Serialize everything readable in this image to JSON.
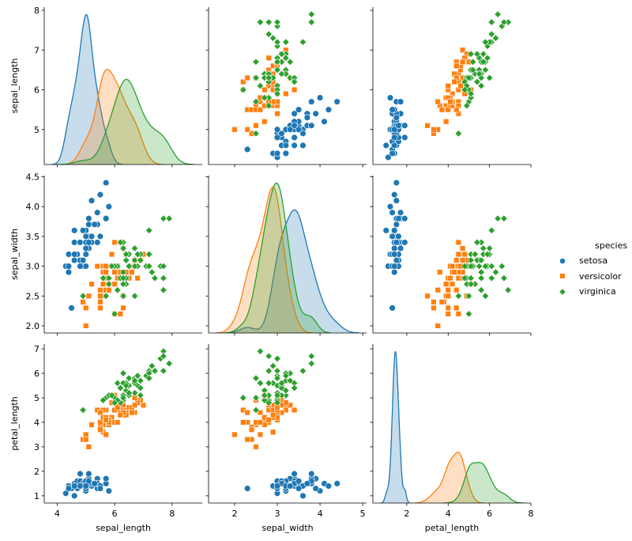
{
  "chart_data": {
    "type": "scatter",
    "subtype": "pairplot",
    "variables": [
      "sepal_length",
      "sepal_width",
      "petal_length"
    ],
    "diagonal": "kde",
    "grid": false,
    "legend": {
      "title": "species",
      "placement": "right"
    },
    "limits": {
      "sepal_length": {
        "x": [
          3.55,
          9.05
        ],
        "y": [
          4.12,
          8.08
        ],
        "ticks": [
          4,
          5,
          6,
          7,
          8
        ],
        "xticks": [
          4,
          6,
          8
        ],
        "yticks": [
          5,
          6,
          7,
          8
        ]
      },
      "sepal_width": {
        "x": [
          1.39,
          5.09
        ],
        "y": [
          1.88,
          4.52
        ],
        "xticks": [
          2,
          3,
          4,
          5
        ],
        "yticks": [
          2.0,
          2.5,
          3.0,
          3.5,
          4.0,
          4.5
        ]
      },
      "petal_length": {
        "x": [
          0.36,
          8.0
        ],
        "y": [
          0.705,
          7.195
        ],
        "xticks": [
          2,
          4,
          6,
          8
        ],
        "yticks": [
          1,
          2,
          3,
          4,
          5,
          6,
          7
        ]
      }
    },
    "species": [
      {
        "name": "setosa",
        "color": "#1f77b4",
        "marker": "circle",
        "points": [
          [
            5.1,
            3.5,
            1.4
          ],
          [
            4.9,
            3.0,
            1.4
          ],
          [
            4.7,
            3.2,
            1.3
          ],
          [
            4.6,
            3.1,
            1.5
          ],
          [
            5.0,
            3.6,
            1.4
          ],
          [
            5.4,
            3.9,
            1.7
          ],
          [
            4.6,
            3.4,
            1.4
          ],
          [
            5.0,
            3.4,
            1.5
          ],
          [
            4.4,
            2.9,
            1.4
          ],
          [
            4.9,
            3.1,
            1.5
          ],
          [
            5.4,
            3.7,
            1.5
          ],
          [
            4.8,
            3.4,
            1.6
          ],
          [
            4.8,
            3.0,
            1.4
          ],
          [
            4.3,
            3.0,
            1.1
          ],
          [
            5.8,
            4.0,
            1.2
          ],
          [
            5.7,
            4.4,
            1.5
          ],
          [
            5.4,
            3.9,
            1.3
          ],
          [
            5.1,
            3.5,
            1.4
          ],
          [
            5.7,
            3.8,
            1.7
          ],
          [
            5.1,
            3.8,
            1.5
          ],
          [
            5.4,
            3.4,
            1.7
          ],
          [
            5.1,
            3.7,
            1.5
          ],
          [
            4.6,
            3.6,
            1.0
          ],
          [
            5.1,
            3.3,
            1.7
          ],
          [
            4.8,
            3.4,
            1.9
          ],
          [
            5.0,
            3.0,
            1.6
          ],
          [
            5.0,
            3.4,
            1.6
          ],
          [
            5.2,
            3.5,
            1.5
          ],
          [
            5.2,
            3.4,
            1.4
          ],
          [
            4.7,
            3.2,
            1.6
          ],
          [
            4.8,
            3.1,
            1.6
          ],
          [
            5.4,
            3.4,
            1.5
          ],
          [
            5.2,
            4.1,
            1.5
          ],
          [
            5.5,
            4.2,
            1.4
          ],
          [
            4.9,
            3.1,
            1.5
          ],
          [
            5.0,
            3.2,
            1.2
          ],
          [
            5.5,
            3.5,
            1.3
          ],
          [
            4.9,
            3.6,
            1.4
          ],
          [
            4.4,
            3.0,
            1.3
          ],
          [
            5.1,
            3.4,
            1.5
          ],
          [
            5.0,
            3.5,
            1.3
          ],
          [
            4.5,
            2.3,
            1.3
          ],
          [
            4.4,
            3.2,
            1.3
          ],
          [
            5.0,
            3.5,
            1.6
          ],
          [
            5.1,
            3.8,
            1.9
          ],
          [
            4.8,
            3.0,
            1.4
          ],
          [
            5.1,
            3.8,
            1.6
          ],
          [
            4.6,
            3.2,
            1.4
          ],
          [
            5.3,
            3.7,
            1.5
          ],
          [
            5.0,
            3.3,
            1.4
          ]
        ]
      },
      {
        "name": "versicolor",
        "color": "#ff7f0e",
        "marker": "square",
        "points": [
          [
            7.0,
            3.2,
            4.7
          ],
          [
            6.4,
            3.2,
            4.5
          ],
          [
            6.9,
            3.1,
            4.9
          ],
          [
            5.5,
            2.3,
            4.0
          ],
          [
            6.5,
            2.8,
            4.6
          ],
          [
            5.7,
            2.8,
            4.5
          ],
          [
            6.3,
            3.3,
            4.7
          ],
          [
            4.9,
            2.4,
            3.3
          ],
          [
            6.6,
            2.9,
            4.6
          ],
          [
            5.2,
            2.7,
            3.9
          ],
          [
            5.0,
            2.0,
            3.5
          ],
          [
            5.9,
            3.0,
            4.2
          ],
          [
            6.0,
            2.2,
            4.0
          ],
          [
            6.1,
            2.9,
            4.7
          ],
          [
            5.6,
            2.9,
            3.6
          ],
          [
            6.7,
            3.1,
            4.4
          ],
          [
            5.6,
            3.0,
            4.5
          ],
          [
            5.8,
            2.7,
            4.1
          ],
          [
            6.2,
            2.2,
            4.5
          ],
          [
            5.6,
            2.5,
            3.9
          ],
          [
            5.9,
            3.2,
            4.8
          ],
          [
            6.1,
            2.8,
            4.0
          ],
          [
            6.3,
            2.5,
            4.9
          ],
          [
            6.1,
            2.8,
            4.7
          ],
          [
            6.4,
            2.9,
            4.3
          ],
          [
            6.6,
            3.0,
            4.4
          ],
          [
            6.8,
            2.8,
            4.8
          ],
          [
            6.7,
            3.0,
            5.0
          ],
          [
            6.0,
            2.9,
            4.5
          ],
          [
            5.7,
            2.6,
            3.5
          ],
          [
            5.5,
            2.4,
            3.8
          ],
          [
            5.5,
            2.4,
            3.7
          ],
          [
            5.8,
            2.7,
            3.9
          ],
          [
            6.0,
            2.7,
            5.1
          ],
          [
            5.4,
            3.0,
            4.5
          ],
          [
            6.0,
            3.4,
            4.5
          ],
          [
            6.7,
            3.1,
            4.7
          ],
          [
            6.3,
            2.3,
            4.4
          ],
          [
            5.6,
            3.0,
            4.1
          ],
          [
            5.5,
            2.5,
            4.0
          ],
          [
            5.5,
            2.6,
            4.4
          ],
          [
            6.1,
            3.0,
            4.6
          ],
          [
            5.8,
            2.6,
            4.0
          ],
          [
            5.0,
            2.3,
            3.3
          ],
          [
            5.6,
            2.7,
            4.2
          ],
          [
            5.7,
            3.0,
            4.2
          ],
          [
            5.7,
            2.9,
            4.2
          ],
          [
            6.2,
            2.9,
            4.3
          ],
          [
            5.1,
            2.5,
            3.0
          ],
          [
            5.7,
            2.8,
            4.1
          ]
        ]
      },
      {
        "name": "virginica",
        "color": "#2ca02c",
        "marker": "diamond",
        "points": [
          [
            6.3,
            3.3,
            6.0
          ],
          [
            5.8,
            2.7,
            5.1
          ],
          [
            7.1,
            3.0,
            5.9
          ],
          [
            6.3,
            2.9,
            5.6
          ],
          [
            6.5,
            3.0,
            5.8
          ],
          [
            7.6,
            3.0,
            6.6
          ],
          [
            4.9,
            2.5,
            4.5
          ],
          [
            7.3,
            2.9,
            6.3
          ],
          [
            6.7,
            2.5,
            5.8
          ],
          [
            7.2,
            3.6,
            6.1
          ],
          [
            6.5,
            3.2,
            5.1
          ],
          [
            6.4,
            2.7,
            5.3
          ],
          [
            6.8,
            3.0,
            5.5
          ],
          [
            5.7,
            2.5,
            5.0
          ],
          [
            5.8,
            2.8,
            5.1
          ],
          [
            6.4,
            3.2,
            5.3
          ],
          [
            6.5,
            3.0,
            5.5
          ],
          [
            7.7,
            3.8,
            6.7
          ],
          [
            7.7,
            2.6,
            6.9
          ],
          [
            6.0,
            2.2,
            5.0
          ],
          [
            6.9,
            3.2,
            5.7
          ],
          [
            5.6,
            2.8,
            4.9
          ],
          [
            7.7,
            2.8,
            6.7
          ],
          [
            6.3,
            2.7,
            4.9
          ],
          [
            6.7,
            3.3,
            5.7
          ],
          [
            7.2,
            3.2,
            6.0
          ],
          [
            6.2,
            2.8,
            4.8
          ],
          [
            6.1,
            3.0,
            4.9
          ],
          [
            6.4,
            2.8,
            5.6
          ],
          [
            7.2,
            3.0,
            5.8
          ],
          [
            7.4,
            2.8,
            6.1
          ],
          [
            7.9,
            3.8,
            6.4
          ],
          [
            6.4,
            2.8,
            5.6
          ],
          [
            6.3,
            2.8,
            5.1
          ],
          [
            6.1,
            2.6,
            5.6
          ],
          [
            7.7,
            3.0,
            6.1
          ],
          [
            6.3,
            3.4,
            5.6
          ],
          [
            6.4,
            3.1,
            5.5
          ],
          [
            6.0,
            3.0,
            4.8
          ],
          [
            6.9,
            3.1,
            5.4
          ],
          [
            6.7,
            3.1,
            5.6
          ],
          [
            6.9,
            3.1,
            5.1
          ],
          [
            5.8,
            2.7,
            5.1
          ],
          [
            6.8,
            3.2,
            5.9
          ],
          [
            6.7,
            3.3,
            5.7
          ],
          [
            6.7,
            3.0,
            5.2
          ],
          [
            6.3,
            2.5,
            5.0
          ],
          [
            6.5,
            3.0,
            5.2
          ],
          [
            6.2,
            3.4,
            5.4
          ],
          [
            5.9,
            3.0,
            5.1
          ]
        ]
      }
    ]
  }
}
